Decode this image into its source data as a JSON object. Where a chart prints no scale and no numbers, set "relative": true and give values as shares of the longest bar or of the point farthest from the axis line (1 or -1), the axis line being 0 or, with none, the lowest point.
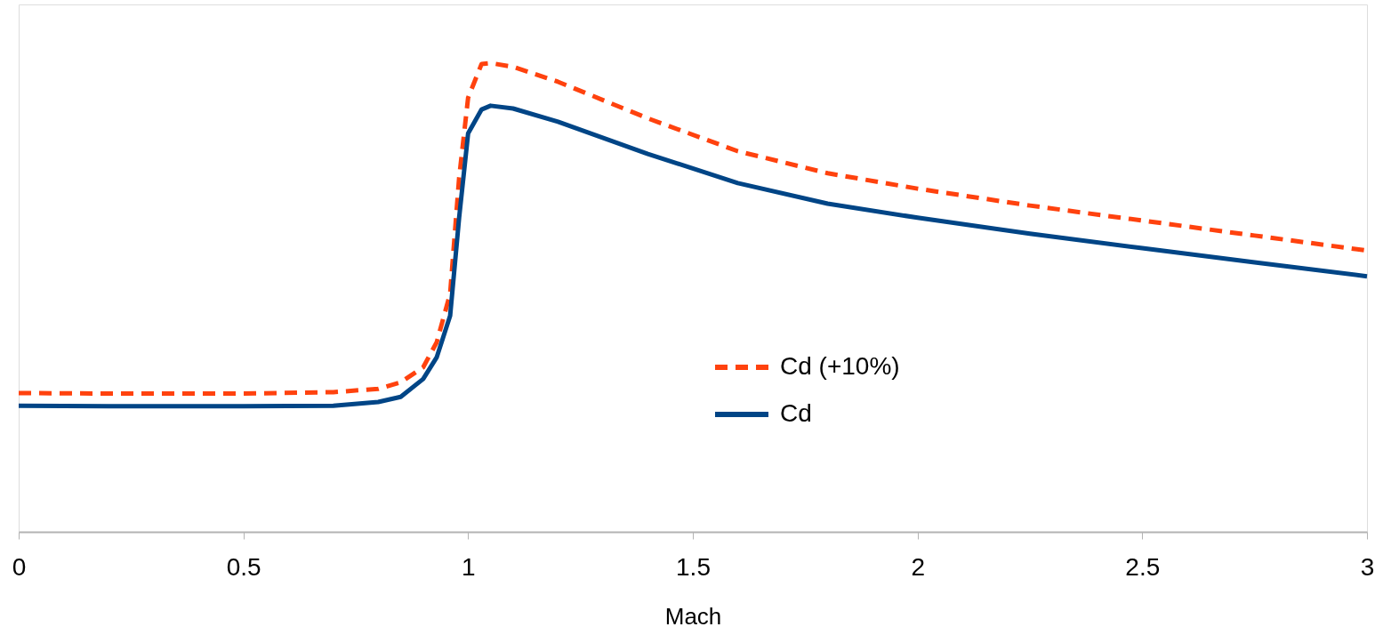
{
  "chart_data": {
    "type": "line",
    "relative": true,
    "xlabel": "Mach",
    "xlim": [
      0,
      3
    ],
    "xticks": [
      0,
      0.5,
      1,
      1.5,
      2,
      2.5,
      3
    ],
    "grid": false,
    "legend": "bottom",
    "marker": "none",
    "series": [
      {
        "name": "Cd (+10%)",
        "color": "#ff420e",
        "line_style": "dashed",
        "x": [
          0,
          0.2,
          0.5,
          0.7,
          0.8,
          0.85,
          0.9,
          0.93,
          0.96,
          0.98,
          1.0,
          1.03,
          1.05,
          1.1,
          1.2,
          1.4,
          1.6,
          1.8,
          2.0,
          2.25,
          2.5,
          2.75,
          3.0
        ],
        "values": [
          0.296,
          0.295,
          0.295,
          0.298,
          0.305,
          0.319,
          0.351,
          0.404,
          0.508,
          0.755,
          0.926,
          0.998,
          1.0,
          0.992,
          0.96,
          0.882,
          0.812,
          0.765,
          0.732,
          0.696,
          0.664,
          0.632,
          0.6
        ]
      },
      {
        "name": "Cd",
        "color": "#004586",
        "line_style": "solid",
        "x": [
          0,
          0.2,
          0.5,
          0.7,
          0.8,
          0.85,
          0.9,
          0.93,
          0.96,
          0.98,
          1.0,
          1.03,
          1.05,
          1.1,
          1.2,
          1.4,
          1.6,
          1.8,
          2.0,
          2.25,
          2.5,
          2.75,
          3.0
        ],
        "values": [
          0.269,
          0.268,
          0.268,
          0.269,
          0.277,
          0.288,
          0.326,
          0.372,
          0.461,
          0.67,
          0.85,
          0.901,
          0.909,
          0.903,
          0.875,
          0.806,
          0.744,
          0.7,
          0.67,
          0.636,
          0.605,
          0.575,
          0.545
        ]
      }
    ]
  }
}
